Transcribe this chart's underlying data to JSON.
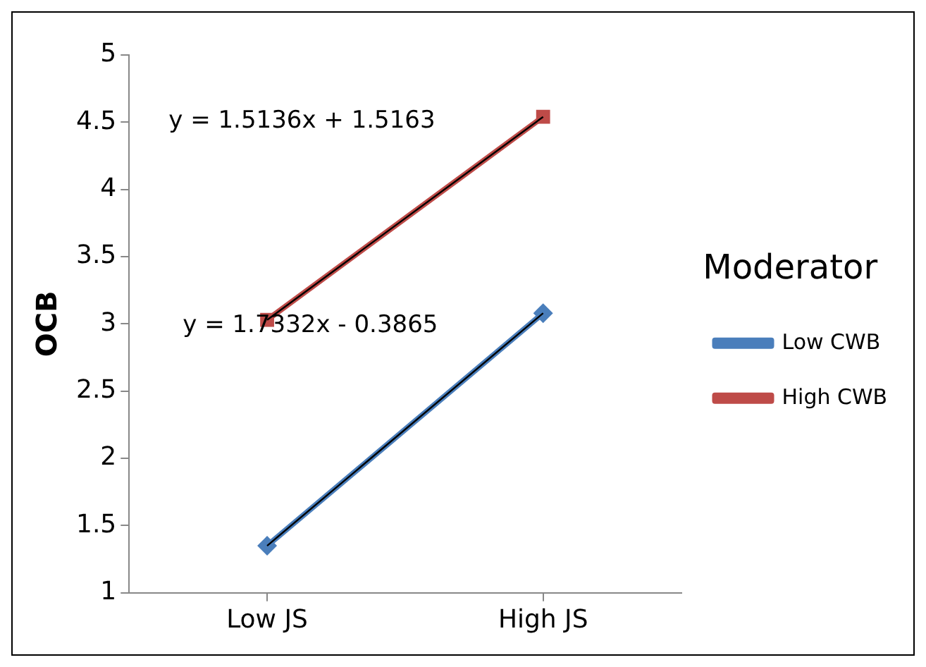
{
  "chart_data": {
    "type": "line",
    "ylabel": "OCB",
    "legend_title": "Moderator",
    "categories": [
      "Low JS",
      "High JS"
    ],
    "ylim": [
      1,
      5
    ],
    "yticks": [
      1,
      1.5,
      2,
      2.5,
      3,
      3.5,
      4,
      4.5,
      5
    ],
    "grid": false,
    "legend": "right",
    "annotations": [
      "y = 1.5136x + 1.5163",
      "y = 1.7332x - 0.3865"
    ],
    "series": [
      {
        "name": "Low CWB",
        "color": "#4a7ebb",
        "values": [
          1.35,
          3.08
        ],
        "marker": "diamond"
      },
      {
        "name": "High CWB",
        "color": "#be4b48",
        "values": [
          3.03,
          4.54
        ],
        "marker": "square"
      },
      {
        "color": "#000000",
        "values": [
          3.03,
          4.54
        ],
        "marker": "none"
      },
      {
        "color": "#000000",
        "values": [
          1.35,
          3.08
        ],
        "marker": "none"
      }
    ]
  }
}
